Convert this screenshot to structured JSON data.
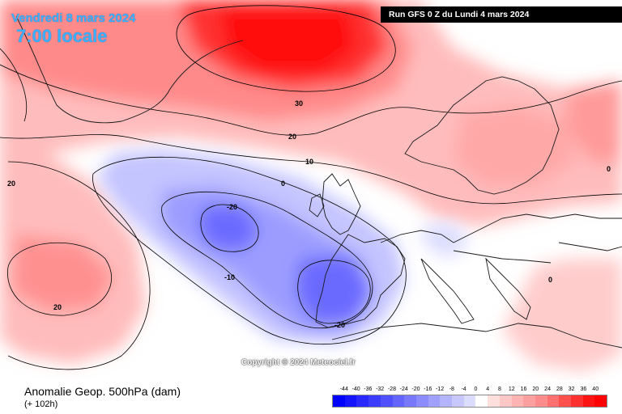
{
  "header": {
    "date": "Vendredi 8 mars 2024",
    "local_time": "7:00 locale",
    "run_info": "Run GFS 0 Z du Lundi 4 mars 2024"
  },
  "copyright": "Copyright © 2024 Meteociel.fr",
  "footer": {
    "title": "Anomalie Geop. 500hPa (dam)",
    "lead_time": "(+ 102h)"
  },
  "contour_labels": [
    "30",
    "20",
    "10",
    "0",
    "-20",
    "-10",
    "-20",
    "20",
    "20",
    "0",
    "0"
  ],
  "legend": {
    "ticks": [
      "-44",
      "-40",
      "-36",
      "-32",
      "-28",
      "-24",
      "-20",
      "-16",
      "-12",
      "-8",
      "-4",
      "0",
      "4",
      "8",
      "12",
      "16",
      "20",
      "24",
      "28",
      "32",
      "36",
      "40"
    ],
    "colors": [
      "#0000ff",
      "#1414ff",
      "#2828ff",
      "#3c3cff",
      "#5050ff",
      "#6464ff",
      "#7878ff",
      "#8c8cff",
      "#a0a0ff",
      "#b4b4ff",
      "#c8c8ff",
      "#dcdcff",
      "#ffffff",
      "#ffdede",
      "#ffc8c8",
      "#ffb4b4",
      "#ffa0a0",
      "#ff8c8c",
      "#ff7070",
      "#ff5050",
      "#ff3030",
      "#ff1414",
      "#ff0000"
    ]
  }
}
